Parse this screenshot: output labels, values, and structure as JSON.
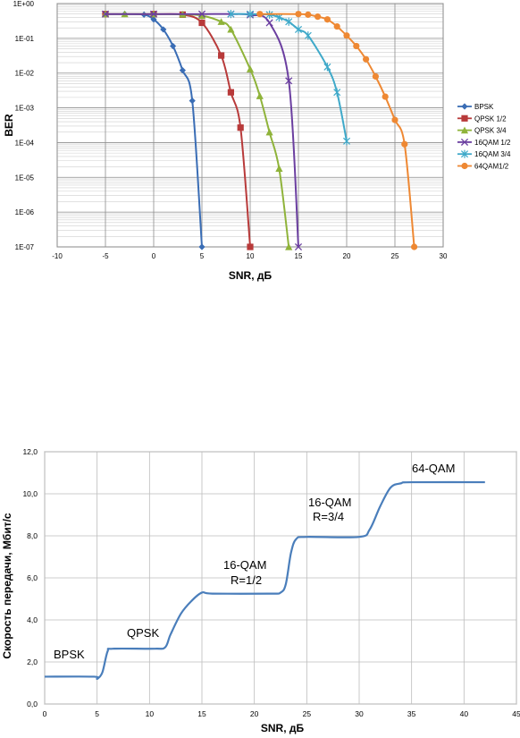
{
  "chart_data": [
    {
      "type": "line",
      "title": "",
      "xlabel": "SNR, дБ",
      "ylabel": "BER",
      "xlim": [
        -10,
        30
      ],
      "ylim": [
        1e-07,
        1
      ],
      "yscale": "log",
      "grid": true,
      "legend": "right",
      "x_ticks": [
        "-10",
        "-5",
        "0",
        "5",
        "10",
        "15",
        "20",
        "25",
        "30"
      ],
      "y_ticks": [
        "1E+00",
        "1E-01",
        "1E-02",
        "1E-03",
        "1E-04",
        "1E-05",
        "1E-06",
        "1E-07"
      ],
      "series": [
        {
          "name": "BPSK",
          "color": "#3a6db5",
          "marker": "diamond",
          "x": [
            -5,
            -3,
            -1,
            0,
            1,
            2,
            3,
            4,
            5
          ],
          "y": [
            0.5,
            0.5,
            0.48,
            0.35,
            0.18,
            0.06,
            0.012,
            0.0016,
            1e-07
          ]
        },
        {
          "name": "QPSK 1/2",
          "color": "#b83a3a",
          "marker": "square",
          "x": [
            -5,
            0,
            3,
            5,
            7,
            8,
            9,
            10
          ],
          "y": [
            0.5,
            0.5,
            0.48,
            0.28,
            0.032,
            0.0028,
            0.00027,
            1e-07
          ]
        },
        {
          "name": "QPSK 3/4",
          "color": "#8fb33a",
          "marker": "triangle",
          "x": [
            -5,
            -3,
            0,
            3,
            5,
            7,
            8,
            10,
            11,
            12,
            13,
            14
          ],
          "y": [
            0.5,
            0.5,
            0.5,
            0.49,
            0.45,
            0.3,
            0.18,
            0.013,
            0.0022,
            0.0002,
            1.8e-05,
            1e-07
          ]
        },
        {
          "name": "16QAM 1/2",
          "color": "#6b3fa0",
          "marker": "x",
          "x": [
            -5,
            0,
            5,
            8,
            10,
            12,
            14,
            15
          ],
          "y": [
            0.5,
            0.5,
            0.5,
            0.5,
            0.47,
            0.28,
            0.006,
            1e-07
          ]
        },
        {
          "name": "16QAM 3/4",
          "color": "#3fa9c9",
          "marker": "star",
          "x": [
            8,
            10,
            12,
            13,
            14,
            15,
            16,
            18,
            19,
            20
          ],
          "y": [
            0.5,
            0.5,
            0.48,
            0.4,
            0.3,
            0.18,
            0.12,
            0.015,
            0.0028,
            0.00011
          ]
        },
        {
          "name": "64QAM1/2",
          "color": "#ee8833",
          "marker": "circle",
          "x": [
            11,
            15,
            16,
            17,
            18,
            19,
            20,
            21,
            22,
            23,
            24,
            25,
            26,
            27
          ],
          "y": [
            0.5,
            0.5,
            0.48,
            0.42,
            0.35,
            0.22,
            0.12,
            0.06,
            0.025,
            0.008,
            0.0021,
            0.00045,
            9e-05,
            1e-07
          ]
        }
      ]
    },
    {
      "type": "line",
      "title": "",
      "xlabel": "SNR, дБ",
      "ylabel": "Скорость передачи, Мбит/с",
      "xlim": [
        0,
        45
      ],
      "ylim": [
        0,
        12
      ],
      "grid": true,
      "x_ticks": [
        "0",
        "5",
        "10",
        "15",
        "20",
        "25",
        "30",
        "35",
        "40",
        "45"
      ],
      "y_ticks": [
        "0,0",
        "2,0",
        "4,0",
        "6,0",
        "8,0",
        "10,0",
        "12,0"
      ],
      "series": [
        {
          "color": "#4a7ebb",
          "x": [
            0,
            4.7,
            5.0,
            5.5,
            6.0,
            6.5,
            10.5,
            11.5,
            12,
            13,
            14,
            15,
            16,
            21.5,
            22.5,
            23,
            23.5,
            24,
            25,
            30,
            31,
            32,
            33,
            34,
            35,
            42
          ],
          "y": [
            1.3,
            1.3,
            1.2,
            1.5,
            2.5,
            2.63,
            2.63,
            2.7,
            3.3,
            4.3,
            4.9,
            5.3,
            5.25,
            5.25,
            5.3,
            5.7,
            7.2,
            7.85,
            7.95,
            7.95,
            8.3,
            9.4,
            10.3,
            10.5,
            10.55,
            10.55
          ]
        }
      ],
      "annotations": [
        "BPSK",
        "QPSK",
        "16-QAM",
        "R=1/2",
        "16-QAM",
        "R=3/4",
        "64-QAM"
      ]
    }
  ]
}
